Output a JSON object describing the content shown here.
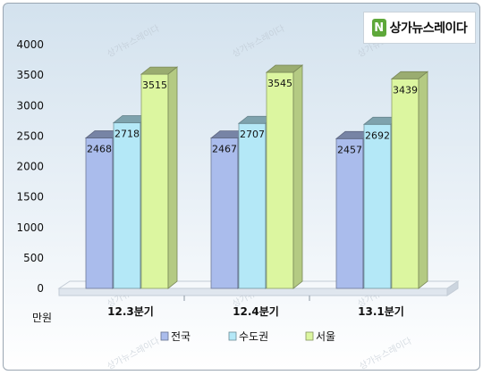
{
  "logo": {
    "mark": "N",
    "text": "상가뉴스레이다"
  },
  "watermark": "상가뉴스레이다",
  "unit_label": "만원",
  "chart_data": {
    "type": "bar",
    "title": "",
    "xlabel": "",
    "ylabel": "만원",
    "categories": [
      "12.3분기",
      "12.4분기",
      "13.1분기"
    ],
    "series": [
      {
        "name": "전국",
        "values": [
          2468,
          2467,
          2457
        ],
        "color": "#aabcec"
      },
      {
        "name": "수도권",
        "values": [
          2718,
          2707,
          2692
        ],
        "color": "#b4e8f7"
      },
      {
        "name": "서울",
        "values": [
          3515,
          3545,
          3439
        ],
        "color": "#dcf6a0"
      }
    ],
    "ylim": [
      0,
      4000
    ],
    "yticks": [
      0,
      500,
      1000,
      1500,
      2000,
      2500,
      3000,
      3500,
      4000
    ],
    "grid": false,
    "legend": "bottom",
    "style": "3d-bar"
  }
}
